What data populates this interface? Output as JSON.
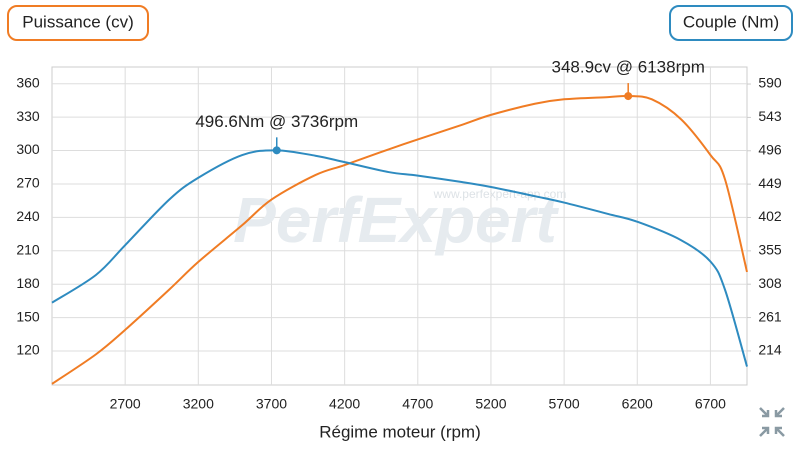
{
  "chart_data": {
    "type": "line",
    "left_axis_title": "Puissance (cv)",
    "right_axis_title": "Couple (Nm)",
    "x_label": "Régime moteur (rpm)",
    "watermark": "PerfExpert",
    "watermark_url": "www.perfexpert-app.com",
    "xlim": [
      2200,
      6950
    ],
    "xticks": [
      2700,
      3200,
      3700,
      4200,
      4700,
      5200,
      5700,
      6200,
      6700
    ],
    "ylim": [
      89.5,
      375
    ],
    "yticks": [
      120,
      150,
      180,
      210,
      240,
      270,
      300,
      330,
      360
    ],
    "y2lim": [
      166,
      614
    ],
    "y2ticks": [
      214,
      261,
      308,
      355,
      402,
      449,
      496,
      543,
      590
    ],
    "grid": true,
    "series": [
      {
        "name": "Puissance (cv)",
        "color": "#f07c24",
        "axis": "y",
        "x": [
          2200,
          2500,
          2700,
          3000,
          3200,
          3500,
          3700,
          4000,
          4200,
          4500,
          4700,
          5000,
          5200,
          5500,
          5700,
          6000,
          6138,
          6300,
          6500,
          6700,
          6800,
          6950
        ],
        "values": [
          90.5,
          117,
          139,
          175,
          200,
          233,
          256,
          278,
          287,
          301,
          310,
          323,
          332,
          342,
          346,
          348,
          348.9,
          346,
          328,
          296,
          274,
          191
        ]
      },
      {
        "name": "Couple (Nm)",
        "color": "#2e8bc0",
        "axis": "y2",
        "x": [
          2200,
          2500,
          2700,
          3000,
          3200,
          3500,
          3736,
          4000,
          4200,
          4500,
          4700,
          5000,
          5200,
          5500,
          5700,
          6000,
          6200,
          6500,
          6700,
          6800,
          6950
        ],
        "values": [
          282,
          321,
          363,
          427,
          458,
          490,
          496.6,
          489,
          480,
          466,
          461,
          452,
          445,
          432,
          423,
          407,
          396,
          370,
          340,
          300,
          192
        ]
      }
    ],
    "annotations": [
      {
        "text": "496.6Nm @ 3736rpm",
        "x": 3736,
        "y": 496.6,
        "axis": "y2",
        "color": "#2e8bc0"
      },
      {
        "text": "348.9cv @ 6138rpm",
        "x": 6138,
        "y": 348.9,
        "axis": "y",
        "color": "#f07c24"
      }
    ]
  }
}
